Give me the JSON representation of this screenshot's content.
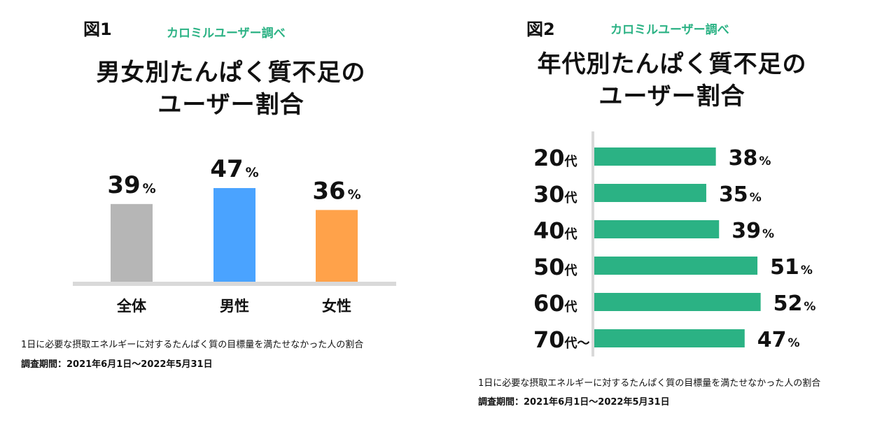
{
  "colors": {
    "source_green": "#2bb284",
    "bar_green": "#2bb284",
    "axis_gray": "#d9d9d9",
    "text": "#111111"
  },
  "figure1": {
    "label": "図1",
    "source": "カロミルユーザー調べ",
    "title_line1": "男女別たんぱく質不足の",
    "title_line2": "ユーザー割合",
    "footnote": "1日に必要な摂取エネルギーに対するたんぱく質の目標量を満たせなかった人の割合",
    "period": "調査期間：2021年6月1日〜2022年5月31日"
  },
  "figure2": {
    "label": "図2",
    "source": "カロミルユーザー調べ",
    "title_line1": "年代別たんぱく質不足の",
    "title_line2": "ユーザー割合",
    "footnote": "1日に必要な摂取エネルギーに対するたんぱく質の目標量を満たせなかった人の割合",
    "period": "調査期間：2021年6月1日〜2022年5月31日"
  },
  "chart_data": [
    {
      "type": "bar",
      "orientation": "vertical",
      "title": "男女別たんぱく質不足のユーザー割合",
      "categories": [
        "全体",
        "男性",
        "女性"
      ],
      "values": [
        39,
        47,
        36
      ],
      "value_labels": [
        "39",
        "47",
        "36"
      ],
      "unit": "%",
      "colors": [
        "#b6b6b6",
        "#4aa3ff",
        "#ffa24a"
      ],
      "ylim": [
        0,
        100
      ]
    },
    {
      "type": "bar",
      "orientation": "horizontal",
      "title": "年代別たんぱく質不足のユーザー割合",
      "categories": [
        {
          "num": "20",
          "suffix": "代"
        },
        {
          "num": "30",
          "suffix": "代"
        },
        {
          "num": "40",
          "suffix": "代"
        },
        {
          "num": "50",
          "suffix": "代"
        },
        {
          "num": "60",
          "suffix": "代"
        },
        {
          "num": "70",
          "suffix": "代〜"
        }
      ],
      "values": [
        38,
        35,
        39,
        51,
        52,
        47
      ],
      "value_labels": [
        "38",
        "35",
        "39",
        "51",
        "52",
        "47"
      ],
      "unit": "%",
      "color": "#2bb284",
      "xlim": [
        0,
        100
      ]
    }
  ]
}
